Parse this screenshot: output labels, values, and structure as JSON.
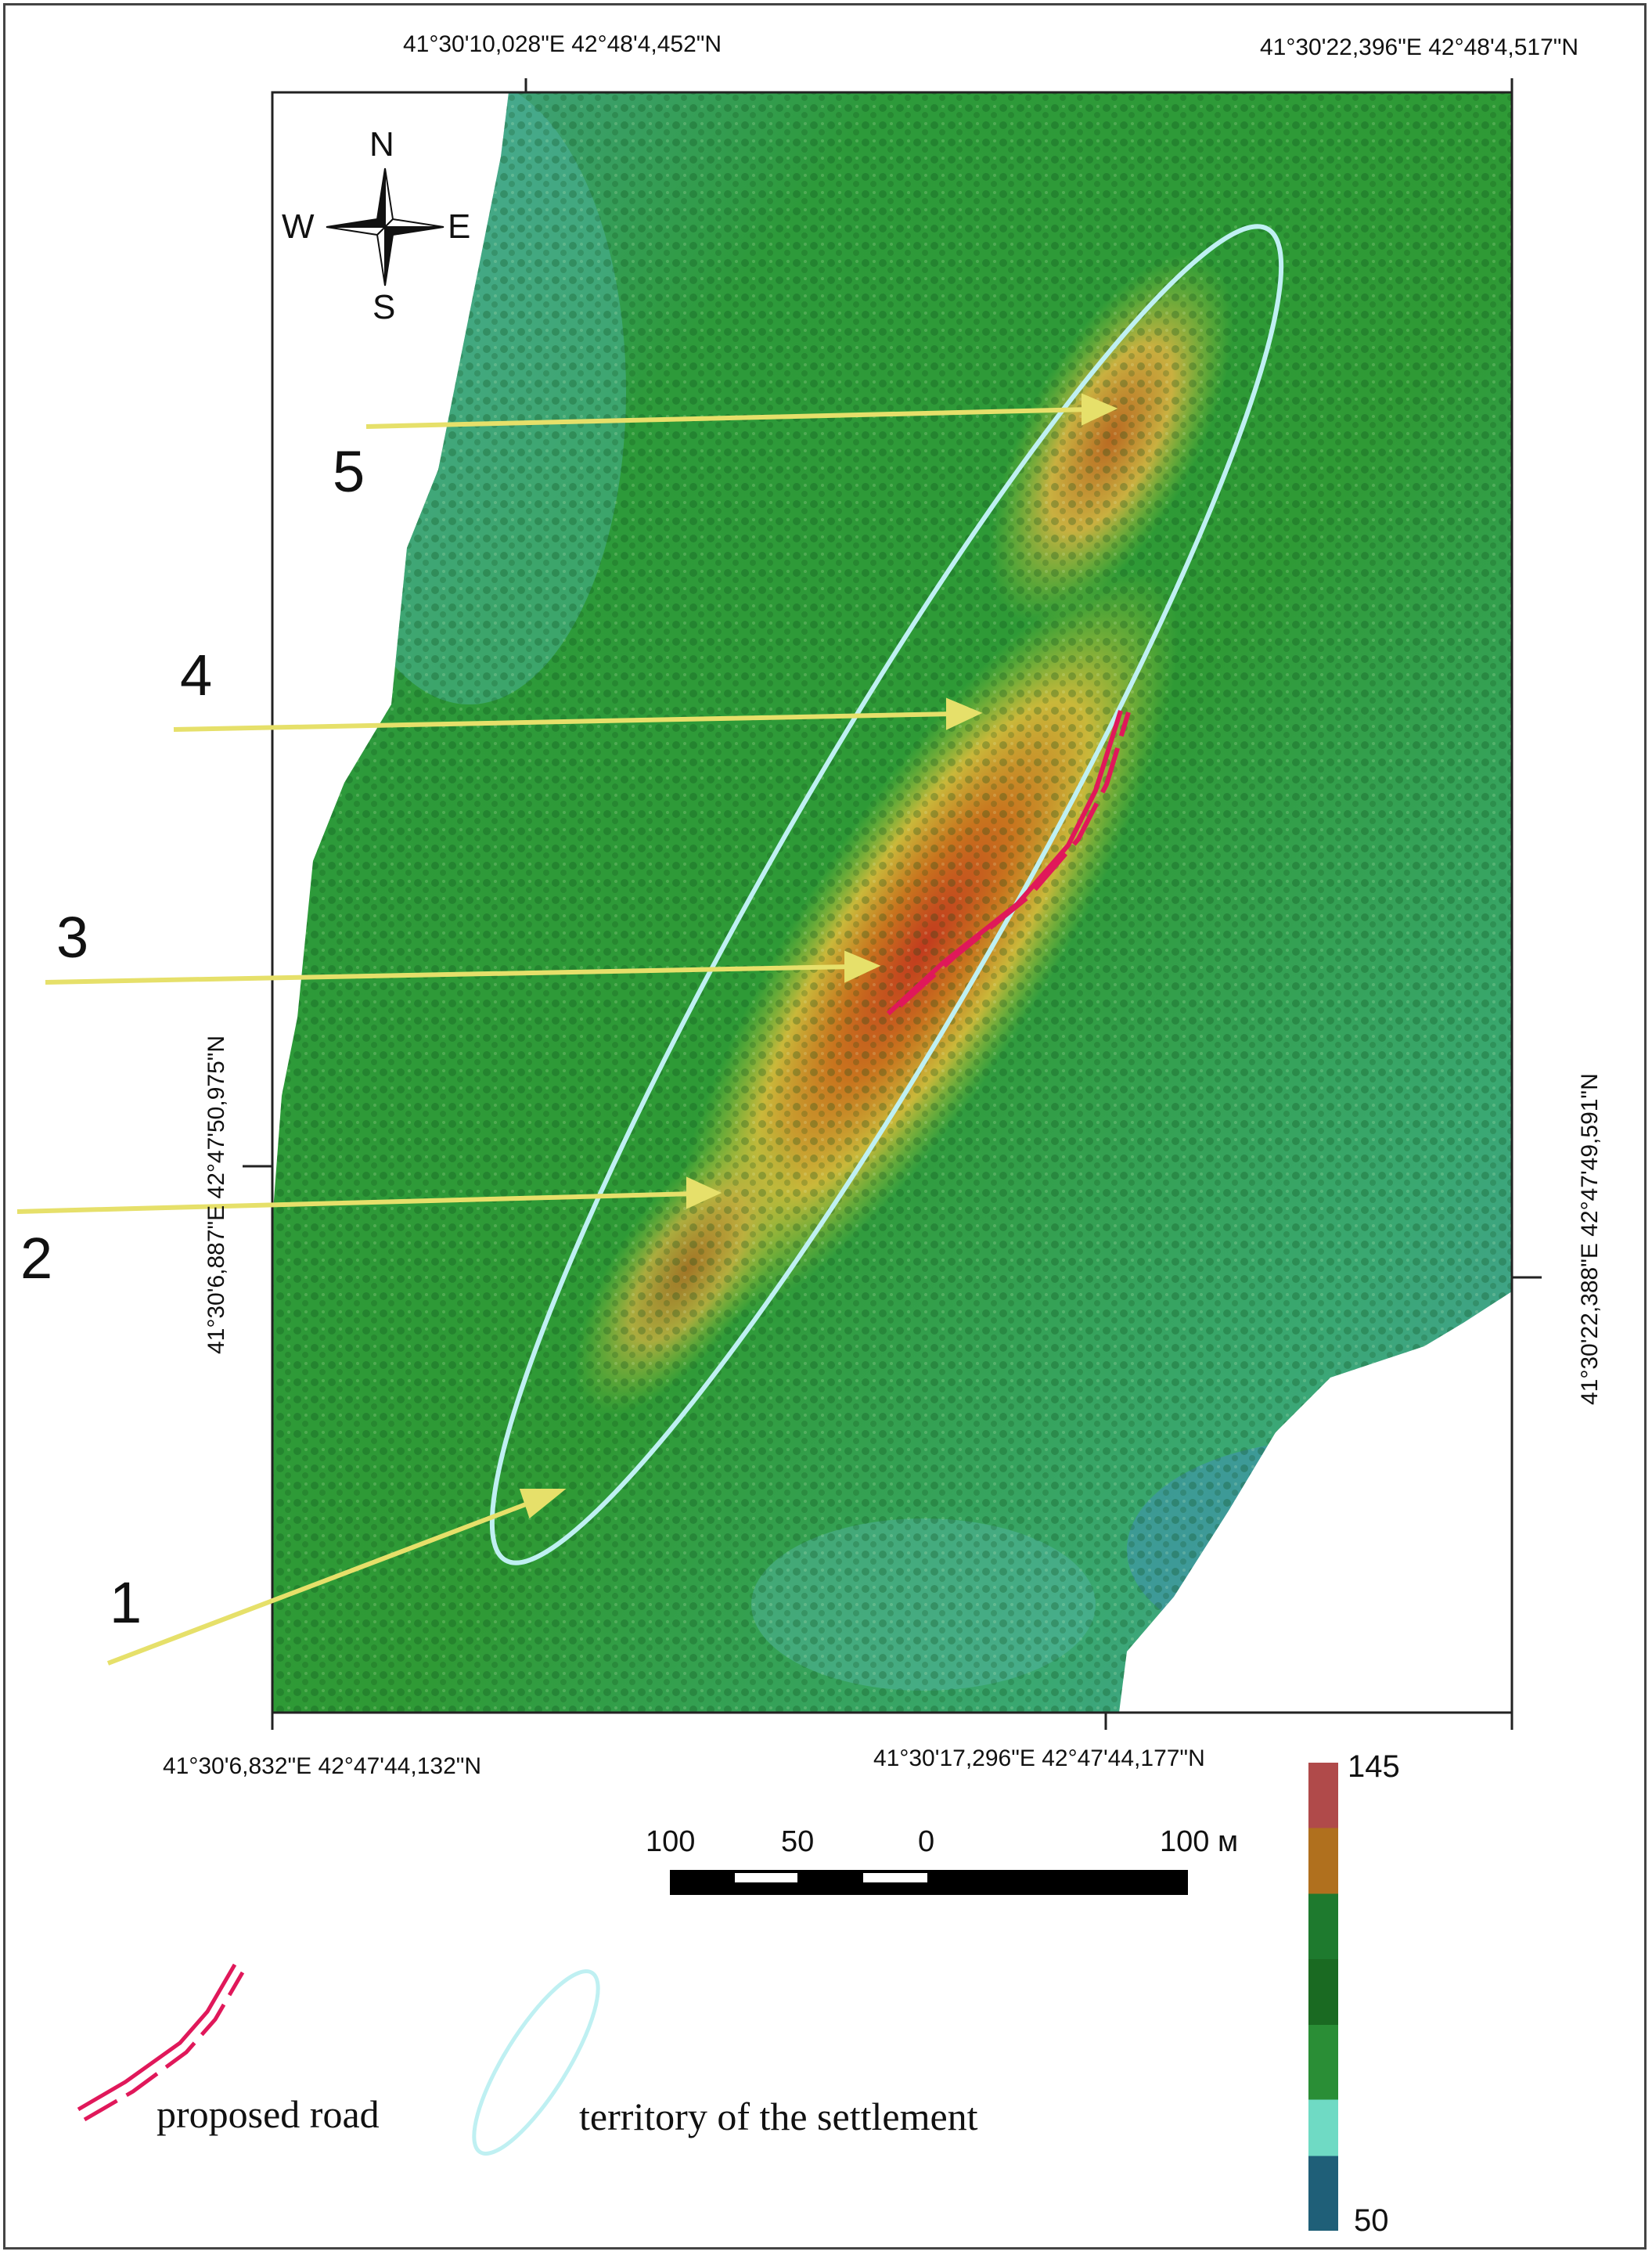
{
  "coordinates": {
    "top_left": "41°30'10,028\"E  42°48'4,452\"N",
    "top_right": "41°30'22,396\"E  42°48'4,517\"N",
    "bottom_left": "41°30'6,832\"E  42°47'44,132\"N",
    "bottom_right": "41°30'17,296\"E  42°47'44,177\"N",
    "left": "41°30'6,887\"E  42°47'50,975\"N",
    "right": "41°30'22,388\"E  42°47'49,591\"N"
  },
  "compass": {
    "n": "N",
    "s": "S",
    "w": "W",
    "e": "E",
    "icon": "compass-rose-icon"
  },
  "markers": [
    "1",
    "2",
    "3",
    "4",
    "5"
  ],
  "scale_bar": {
    "labels": [
      "100",
      "50",
      "0",
      "100 м"
    ]
  },
  "elevation_ramp": {
    "max": "145",
    "min": "50",
    "colors": [
      "#b04a4a",
      "#b0701e",
      "#1e7a2e",
      "#1a6a22",
      "#2a8e36",
      "#6fdac4",
      "#1f5f78"
    ]
  },
  "legend": {
    "road": "proposed road",
    "territory": "territory of the settlement"
  },
  "colors": {
    "road": "#e0185a",
    "territory": "#bff0f2",
    "arrow": "#e6e06a"
  }
}
